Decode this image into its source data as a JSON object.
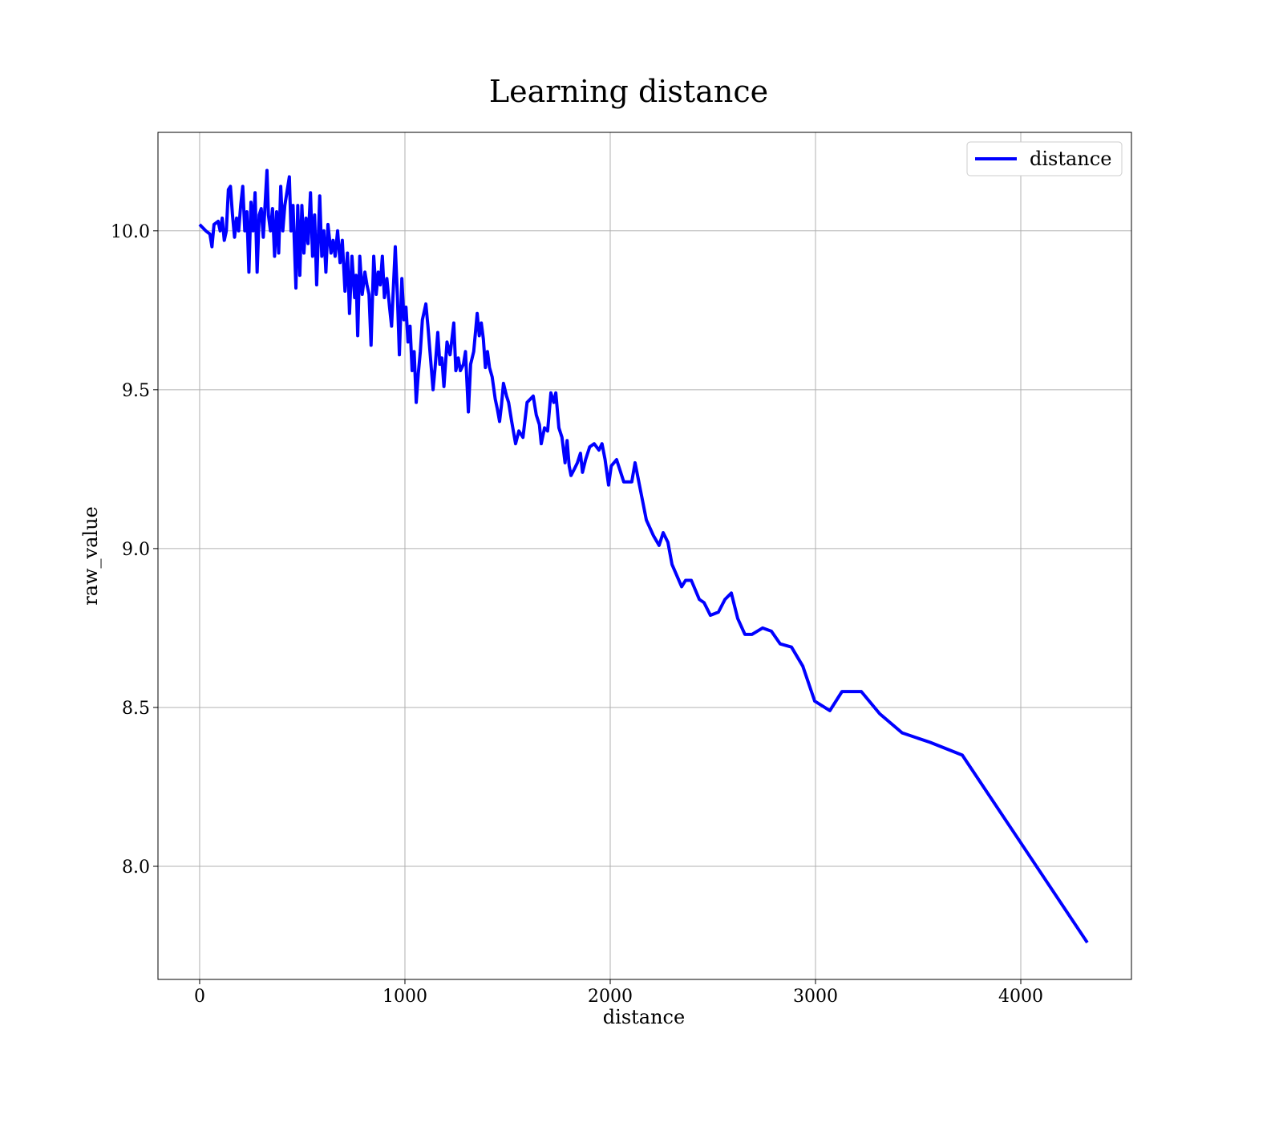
{
  "chart_data": {
    "type": "line",
    "title": "Learning distance",
    "x_label": "distance",
    "y_label": "raw_value",
    "x": [
      0,
      30,
      50,
      60,
      70,
      90,
      100,
      110,
      120,
      130,
      140,
      150,
      160,
      170,
      180,
      190,
      200,
      210,
      220,
      230,
      240,
      250,
      260,
      270,
      280,
      290,
      300,
      310,
      328,
      335,
      345,
      355,
      365,
      375,
      385,
      395,
      405,
      415,
      437,
      445,
      455,
      469,
      478,
      488,
      498,
      508,
      518,
      528,
      540,
      550,
      560,
      570,
      585,
      595,
      605,
      615,
      625,
      640,
      650,
      660,
      672,
      684,
      695,
      708,
      720,
      730,
      742,
      755,
      762,
      770,
      780,
      792,
      805,
      815,
      825,
      835,
      848,
      860,
      870,
      880,
      890,
      900,
      912,
      925,
      935,
      953,
      963,
      973,
      985,
      995,
      1005,
      1015,
      1025,
      1035,
      1045,
      1055,
      1065,
      1075,
      1085,
      1102,
      1112,
      1122,
      1137,
      1147,
      1160,
      1170,
      1180,
      1190,
      1205,
      1220,
      1238,
      1248,
      1260,
      1270,
      1285,
      1295,
      1309,
      1320,
      1335,
      1352,
      1362,
      1372,
      1382,
      1392,
      1402,
      1412,
      1425,
      1440,
      1450,
      1461,
      1470,
      1480,
      1495,
      1505,
      1520,
      1539,
      1555,
      1575,
      1595,
      1610,
      1625,
      1640,
      1655,
      1664,
      1680,
      1695,
      1711,
      1725,
      1735,
      1750,
      1765,
      1780,
      1790,
      1800,
      1809,
      1825,
      1840,
      1855,
      1865,
      1880,
      1900,
      1922,
      1945,
      1960,
      1975,
      1992,
      2005,
      2031,
      2066,
      2105,
      2121,
      2176,
      2211,
      2238,
      2258,
      2281,
      2301,
      2348,
      2367,
      2395,
      2434,
      2457,
      2488,
      2527,
      2559,
      2590,
      2621,
      2656,
      2691,
      2742,
      2785,
      2828,
      2883,
      2938,
      2996,
      3070,
      3129,
      3223,
      3313,
      3422,
      3559,
      3715,
      4324
    ],
    "series": [
      {
        "name": "distance",
        "color": "#0000ff",
        "values": [
          10.02,
          10.0,
          9.99,
          9.95,
          10.02,
          10.03,
          10.0,
          10.04,
          9.97,
          10.0,
          10.13,
          10.14,
          10.05,
          9.98,
          10.04,
          10.0,
          10.08,
          10.14,
          10.0,
          10.06,
          9.87,
          10.09,
          10.0,
          10.12,
          9.87,
          10.05,
          10.07,
          9.98,
          10.19,
          10.05,
          10.0,
          10.07,
          9.92,
          10.06,
          9.93,
          10.14,
          10.0,
          10.08,
          10.17,
          10.0,
          10.08,
          9.82,
          10.08,
          9.86,
          10.08,
          9.93,
          10.04,
          9.96,
          10.12,
          9.92,
          10.05,
          9.83,
          10.11,
          9.92,
          10.0,
          9.87,
          10.02,
          9.93,
          9.97,
          9.92,
          10.0,
          9.9,
          9.97,
          9.81,
          9.93,
          9.74,
          9.92,
          9.79,
          9.86,
          9.67,
          9.92,
          9.8,
          9.87,
          9.83,
          9.8,
          9.64,
          9.92,
          9.8,
          9.87,
          9.83,
          9.92,
          9.79,
          9.85,
          9.76,
          9.7,
          9.95,
          9.8,
          9.61,
          9.85,
          9.72,
          9.76,
          9.65,
          9.7,
          9.56,
          9.62,
          9.46,
          9.55,
          9.62,
          9.72,
          9.77,
          9.7,
          9.62,
          9.5,
          9.57,
          9.68,
          9.58,
          9.6,
          9.51,
          9.65,
          9.61,
          9.71,
          9.56,
          9.6,
          9.56,
          9.58,
          9.62,
          9.43,
          9.58,
          9.62,
          9.74,
          9.67,
          9.71,
          9.66,
          9.57,
          9.62,
          9.57,
          9.54,
          9.47,
          9.44,
          9.4,
          9.45,
          9.52,
          9.48,
          9.46,
          9.4,
          9.33,
          9.37,
          9.35,
          9.46,
          9.47,
          9.48,
          9.42,
          9.39,
          9.33,
          9.38,
          9.37,
          9.49,
          9.46,
          9.49,
          9.38,
          9.35,
          9.27,
          9.34,
          9.26,
          9.23,
          9.25,
          9.27,
          9.3,
          9.24,
          9.28,
          9.32,
          9.33,
          9.31,
          9.33,
          9.28,
          9.2,
          9.26,
          9.28,
          9.21,
          9.21,
          9.27,
          9.09,
          9.04,
          9.01,
          9.05,
          9.02,
          8.95,
          8.88,
          8.9,
          8.9,
          8.84,
          8.83,
          8.79,
          8.8,
          8.84,
          8.86,
          8.78,
          8.73,
          8.73,
          8.75,
          8.74,
          8.7,
          8.69,
          8.63,
          8.52,
          8.49,
          8.55,
          8.55,
          8.48,
          8.42,
          8.39,
          8.35,
          7.76
        ]
      }
    ],
    "xlim": [
      -203,
      4539
    ],
    "ylim": [
      7.644,
      10.31
    ],
    "xticks": [
      0,
      1000,
      2000,
      3000,
      4000
    ],
    "yticks": [
      {
        "value": 8,
        "label": "8.0"
      },
      8.5,
      {
        "value": 9,
        "label": "9.0"
      },
      9.5,
      {
        "value": 10,
        "label": "10.0"
      }
    ],
    "grid": true,
    "legend": "upper right"
  }
}
